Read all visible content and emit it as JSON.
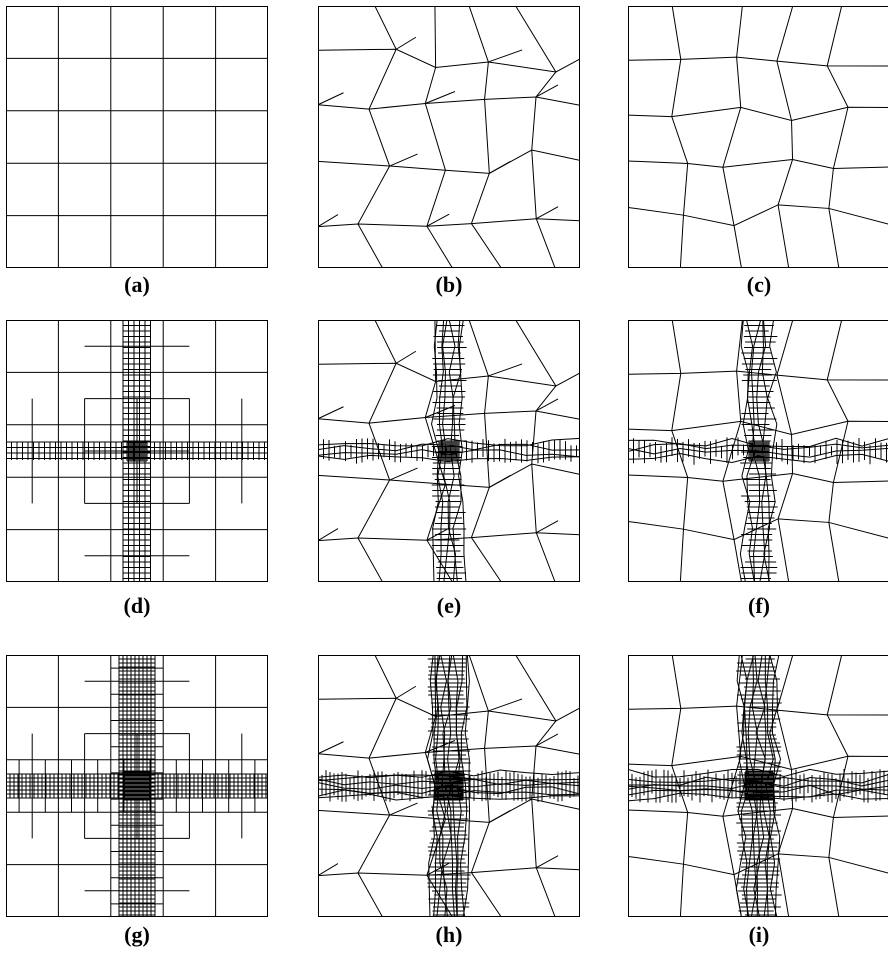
{
  "panels": [
    {
      "id": "a",
      "caption": "(a)",
      "style": "uniform-grid",
      "refined": false
    },
    {
      "id": "b",
      "caption": "(b)",
      "style": "polygonal",
      "refined": false
    },
    {
      "id": "c",
      "caption": "(c)",
      "style": "perturbed-quad",
      "refined": false
    },
    {
      "id": "d",
      "caption": "(d)",
      "style": "uniform-grid",
      "refined": true,
      "level": 1
    },
    {
      "id": "e",
      "caption": "(e)",
      "style": "polygonal",
      "refined": true,
      "level": 1
    },
    {
      "id": "f",
      "caption": "(f)",
      "style": "perturbed-quad",
      "refined": true,
      "level": 1
    },
    {
      "id": "g",
      "caption": "(g)",
      "style": "uniform-grid",
      "refined": true,
      "level": 2
    },
    {
      "id": "h",
      "caption": "(h)",
      "style": "polygonal",
      "refined": true,
      "level": 2
    },
    {
      "id": "i",
      "caption": "(i)",
      "style": "perturbed-quad",
      "refined": true,
      "level": 2
    }
  ],
  "colors": {
    "line": "#000000",
    "background": "#ffffff"
  }
}
